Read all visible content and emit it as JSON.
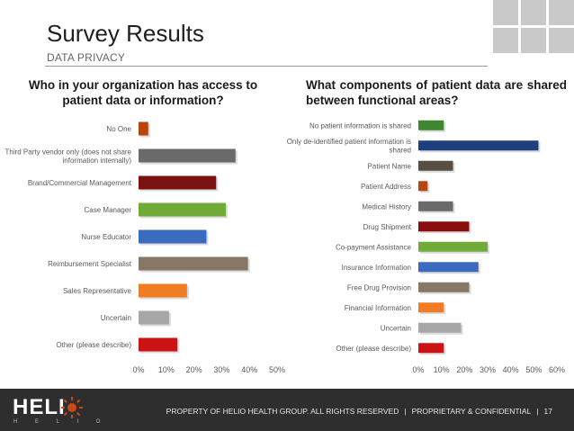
{
  "slide": {
    "title": "Survey Results",
    "subtitle": "DATA PRIVACY",
    "page_number": "17"
  },
  "footer": {
    "logo_text": "HELI",
    "logo_letters": "H E L I O",
    "copyright": "PROPERTY OF HELIO HEALTH GROUP.  ALL RIGHTS RESERVED",
    "classification": "PROPRIETARY & CONFIDENTIAL",
    "separator": "|"
  },
  "colors": {
    "accent": "#c94a12",
    "footer_bg": "#2e2e2e"
  },
  "chart_data": [
    {
      "type": "bar",
      "orientation": "horizontal",
      "title": "Who in your organization has access to patient data or information?",
      "categories": [
        "No One",
        "Third Party vendor only (does not share information internally)",
        "Brand/Commercial Management",
        "Case Manager",
        "Nurse Educator",
        "Reimbursement Specialist",
        "Sales Representative",
        "Uncertain",
        "Other (please describe)"
      ],
      "values": [
        3.5,
        35,
        28,
        31.5,
        24.5,
        39.5,
        17.5,
        11,
        14
      ],
      "colors": [
        "#b9450e",
        "#6a6a6a",
        "#7b1111",
        "#6fab36",
        "#3a6bbf",
        "#877866",
        "#f07d24",
        "#a6a6a6",
        "#cc1414"
      ],
      "xlim": [
        0,
        50
      ],
      "ticks": [
        "0%",
        "10%",
        "20%",
        "30%",
        "40%",
        "50%"
      ],
      "grid": false,
      "legend": "none"
    },
    {
      "type": "bar",
      "orientation": "horizontal",
      "title": "What components of patient data are shared between functional areas?",
      "categories": [
        "No patient information is shared",
        "Only de-identified patient information is shared",
        "Patient Name",
        "Patient Address",
        "Medical History",
        "Drug Shipment",
        "Co-payment Assistance",
        "Insurance Information",
        "Free Drug Provision",
        "Financial Information",
        "Uncertain",
        "Other (please describe)"
      ],
      "values": [
        11,
        52,
        15,
        4,
        15,
        22,
        30,
        26,
        22,
        11,
        18.5,
        11
      ],
      "colors": [
        "#3e8630",
        "#1d3f7e",
        "#574f42",
        "#b9450e",
        "#6a6a6a",
        "#8b0d0d",
        "#6fab36",
        "#3a6bbf",
        "#877866",
        "#f07d24",
        "#a6a6a6",
        "#cc1414"
      ],
      "xlim": [
        0,
        60
      ],
      "ticks": [
        "0%",
        "10%",
        "20%",
        "30%",
        "40%",
        "50%",
        "60%"
      ],
      "grid": false,
      "legend": "none"
    }
  ]
}
